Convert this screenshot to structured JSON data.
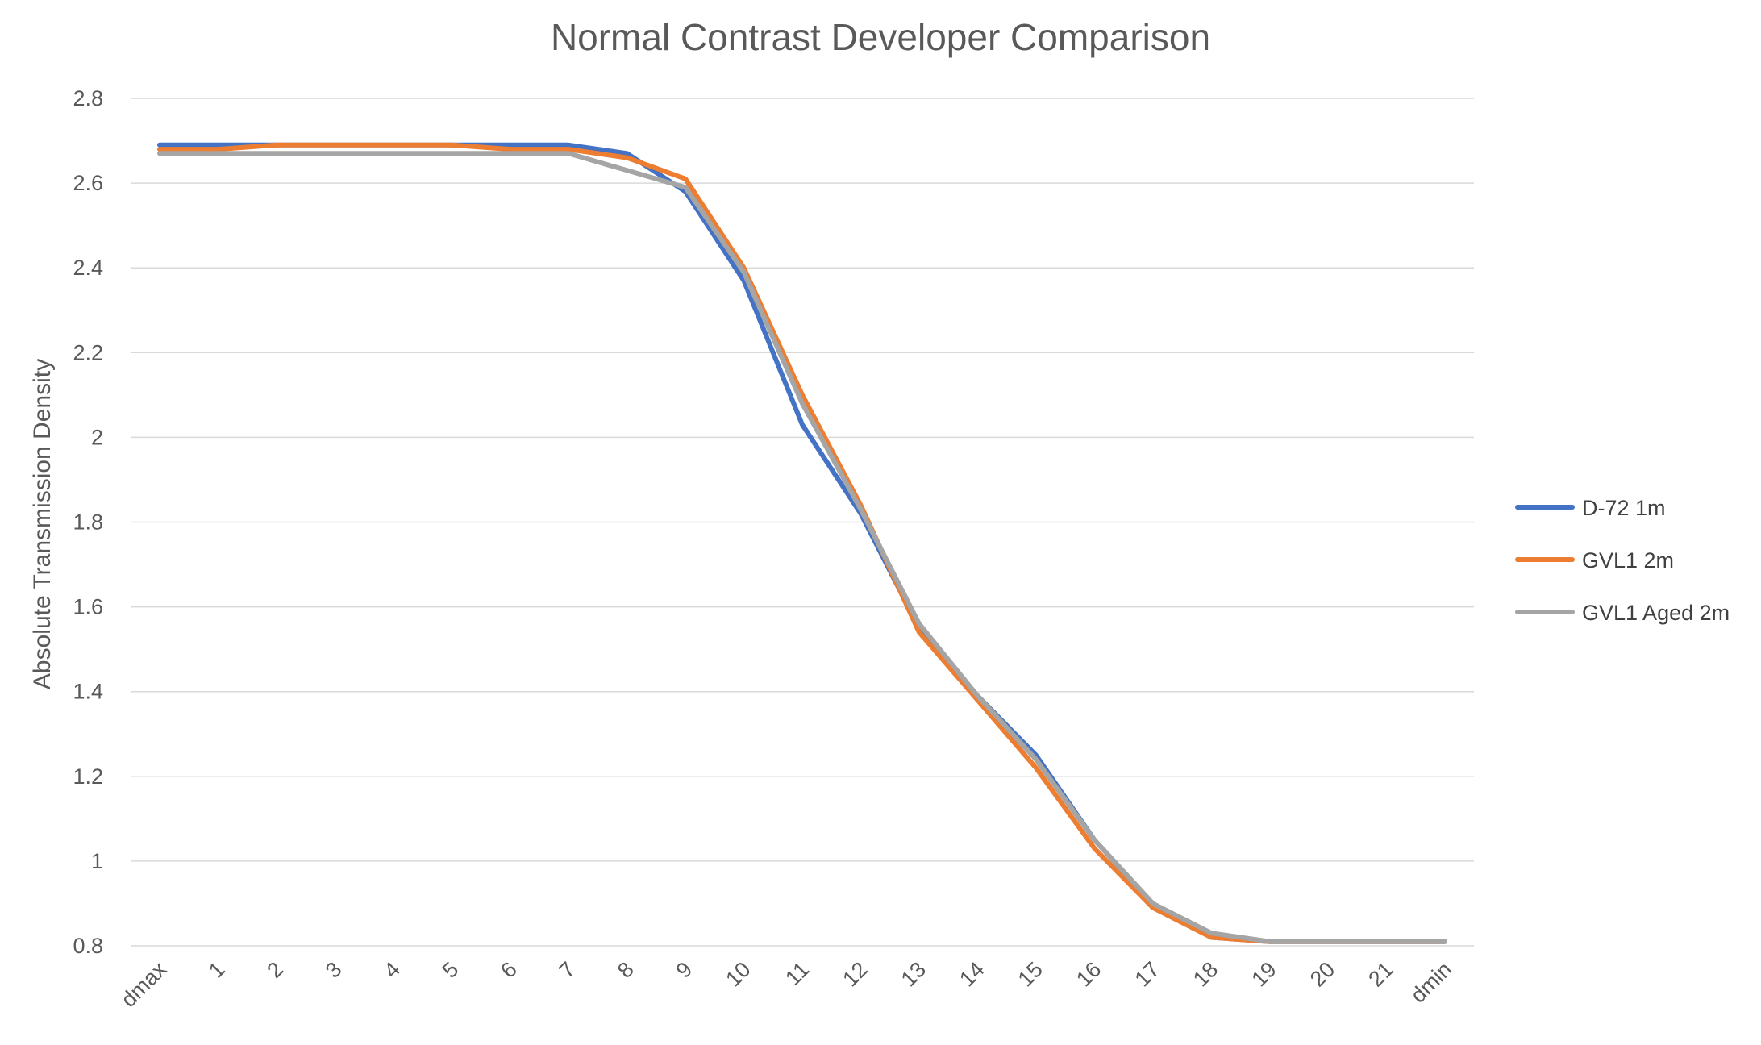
{
  "chart_data": {
    "type": "line",
    "title": "Normal Contrast Developer Comparison",
    "xlabel": "",
    "ylabel": "Absolute Transmission Density",
    "categories": [
      "dmax",
      "1",
      "2",
      "3",
      "4",
      "5",
      "6",
      "7",
      "8",
      "9",
      "10",
      "11",
      "12",
      "13",
      "14",
      "15",
      "16",
      "17",
      "18",
      "19",
      "20",
      "21",
      "dmin"
    ],
    "ylim": [
      0.8,
      2.8
    ],
    "yticks": [
      "0.8",
      "1",
      "1.2",
      "1.4",
      "1.6",
      "1.8",
      "2",
      "2.2",
      "2.4",
      "2.6",
      "2.8"
    ],
    "grid": true,
    "legend_position": "right",
    "series": [
      {
        "name": "D-72 1m",
        "color": "#4472c4",
        "values": [
          2.69,
          2.69,
          2.69,
          2.69,
          2.69,
          2.69,
          2.69,
          2.69,
          2.67,
          2.58,
          2.37,
          2.03,
          1.82,
          1.55,
          1.39,
          1.25,
          1.05,
          0.9,
          0.82,
          0.81,
          0.81,
          0.81,
          0.81
        ]
      },
      {
        "name": "GVL1 2m",
        "color": "#ed7d31",
        "values": [
          2.68,
          2.68,
          2.69,
          2.69,
          2.69,
          2.69,
          2.68,
          2.68,
          2.66,
          2.61,
          2.4,
          2.1,
          1.84,
          1.54,
          1.38,
          1.22,
          1.03,
          0.89,
          0.82,
          0.81,
          0.81,
          0.81,
          0.81
        ]
      },
      {
        "name": "GVL1 Aged 2m",
        "color": "#a5a5a5",
        "values": [
          2.67,
          2.67,
          2.67,
          2.67,
          2.67,
          2.67,
          2.67,
          2.67,
          2.63,
          2.59,
          2.39,
          2.08,
          1.83,
          1.56,
          1.39,
          1.24,
          1.05,
          0.9,
          0.83,
          0.81,
          0.81,
          0.81,
          0.81
        ]
      }
    ]
  }
}
